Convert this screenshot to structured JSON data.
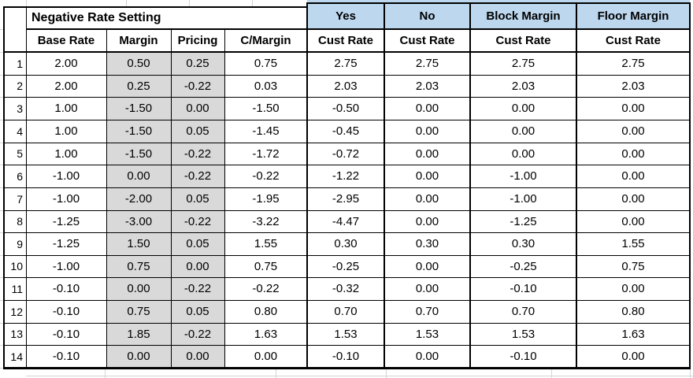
{
  "table": {
    "group_header": "Negative Rate Setting",
    "option_headers": [
      "Yes",
      "No",
      "Block Margin",
      "Floor Margin"
    ],
    "sub_headers": [
      "Base Rate",
      "Margin",
      "Pricing",
      "C/Margin",
      "Cust Rate",
      "Cust Rate",
      "Cust Rate",
      "Cust Rate"
    ],
    "rows": [
      {
        "num": "1",
        "values": [
          "2.00",
          "0.50",
          "0.25",
          "0.75",
          "2.75",
          "2.75",
          "2.75",
          "2.75"
        ]
      },
      {
        "num": "2",
        "values": [
          "2.00",
          "0.25",
          "-0.22",
          "0.03",
          "2.03",
          "2.03",
          "2.03",
          "2.03"
        ]
      },
      {
        "num": "3",
        "values": [
          "1.00",
          "-1.50",
          "0.00",
          "-1.50",
          "-0.50",
          "0.00",
          "0.00",
          "0.00"
        ]
      },
      {
        "num": "4",
        "values": [
          "1.00",
          "-1.50",
          "0.05",
          "-1.45",
          "-0.45",
          "0.00",
          "0.00",
          "0.00"
        ]
      },
      {
        "num": "5",
        "values": [
          "1.00",
          "-1.50",
          "-0.22",
          "-1.72",
          "-0.72",
          "0.00",
          "0.00",
          "0.00"
        ]
      },
      {
        "num": "6",
        "values": [
          "-1.00",
          "0.00",
          "-0.22",
          "-0.22",
          "-1.22",
          "0.00",
          "-1.00",
          "0.00"
        ]
      },
      {
        "num": "7",
        "values": [
          "-1.00",
          "-2.00",
          "0.05",
          "-1.95",
          "-2.95",
          "0.00",
          "-1.00",
          "0.00"
        ]
      },
      {
        "num": "8",
        "values": [
          "-1.25",
          "-3.00",
          "-0.22",
          "-3.22",
          "-4.47",
          "0.00",
          "-1.25",
          "0.00"
        ]
      },
      {
        "num": "9",
        "values": [
          "-1.25",
          "1.50",
          "0.05",
          "1.55",
          "0.30",
          "0.30",
          "0.30",
          "1.55"
        ]
      },
      {
        "num": "10",
        "values": [
          "-1.00",
          "0.75",
          "0.00",
          "0.75",
          "-0.25",
          "0.00",
          "-0.25",
          "0.75"
        ]
      },
      {
        "num": "11",
        "values": [
          "-0.10",
          "0.00",
          "-0.22",
          "-0.22",
          "-0.32",
          "0.00",
          "-0.10",
          "0.00"
        ]
      },
      {
        "num": "12",
        "values": [
          "-0.10",
          "0.75",
          "0.05",
          "0.80",
          "0.70",
          "0.70",
          "0.70",
          "0.80"
        ]
      },
      {
        "num": "13",
        "values": [
          "-0.10",
          "1.85",
          "-0.22",
          "1.63",
          "1.53",
          "1.53",
          "1.53",
          "1.63"
        ]
      },
      {
        "num": "14",
        "values": [
          "-0.10",
          "0.00",
          "0.00",
          "0.00",
          "-0.10",
          "0.00",
          "-0.10",
          "0.00"
        ]
      }
    ]
  },
  "colors": {
    "option_header_blue": "#BDD7EE",
    "shaded_cell_gray": "#D9D9D9",
    "border_black": "#000000",
    "gridline_gray": "#D4D4D4"
  }
}
